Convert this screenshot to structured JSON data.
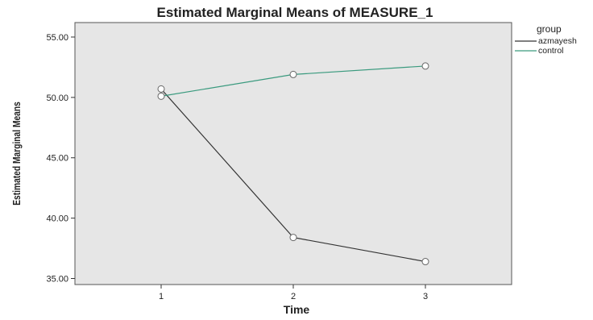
{
  "chart_data": {
    "type": "line",
    "title": "Estimated Marginal Means of MEASURE_1",
    "xlabel": "Time",
    "ylabel": "Estimated Marginal Means",
    "x": [
      1,
      2,
      3
    ],
    "x_tick_labels": [
      "1",
      "2",
      "3"
    ],
    "ylim": [
      34.5,
      56.2
    ],
    "y_ticks": [
      35,
      40,
      45,
      50,
      55
    ],
    "y_tick_labels": [
      "35.00",
      "40.00",
      "45.00",
      "50.00",
      "55.00"
    ],
    "grid": false,
    "legend": {
      "title": "group",
      "position": "right"
    },
    "series": [
      {
        "name": "azmayesh",
        "color": "#333333",
        "values": [
          50.7,
          38.4,
          36.4
        ]
      },
      {
        "name": "control",
        "color": "#3a9a7e",
        "values": [
          50.1,
          51.9,
          52.6
        ]
      }
    ],
    "colors": {
      "plot_background": "#e6e6e6",
      "marker_fill": "#ffffff"
    }
  }
}
